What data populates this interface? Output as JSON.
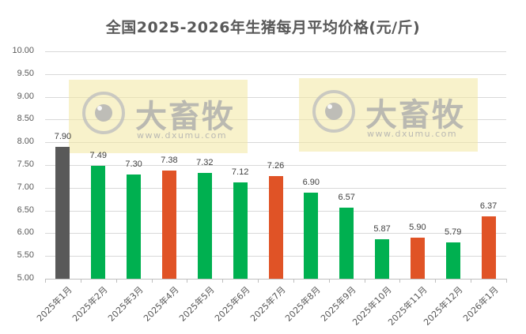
{
  "chart_data": {
    "type": "bar",
    "title": "全国2025-2026年生猪每月平均价格(元/斤)",
    "xlabel": "",
    "ylabel": "",
    "ylim": [
      5.0,
      10.0
    ],
    "yticks": [
      "10.00",
      "9.50",
      "9.00",
      "8.50",
      "8.00",
      "7.50",
      "7.00",
      "6.50",
      "6.00",
      "5.50",
      "5.00"
    ],
    "grid": true,
    "legend": null,
    "categories": [
      "2025年1月",
      "2025年2月",
      "2025年3月",
      "2025年4月",
      "2025年5月",
      "2025年6月",
      "2025年7月",
      "2025年8月",
      "2025年9月",
      "2025年10月",
      "2025年11月",
      "2025年12月",
      "2026年1月"
    ],
    "values": [
      7.9,
      7.49,
      7.3,
      7.38,
      7.32,
      7.12,
      7.26,
      6.9,
      6.57,
      5.87,
      5.9,
      5.79,
      6.37
    ],
    "value_labels": [
      "7.90",
      "7.49",
      "7.30",
      "7.38",
      "7.32",
      "7.12",
      "7.26",
      "6.90",
      "6.57",
      "5.87",
      "5.90",
      "5.79",
      "6.37"
    ],
    "bar_colors": [
      "#595959",
      "#00b050",
      "#00b050",
      "#e05326",
      "#00b050",
      "#00b050",
      "#e05326",
      "#00b050",
      "#00b050",
      "#00b050",
      "#e05326",
      "#00b050",
      "#e05326"
    ]
  },
  "colors": {
    "base": "#595959",
    "down": "#00b050",
    "up": "#e05326",
    "grid": "#d9d9d9",
    "text": "#595959"
  },
  "watermarks": [
    {
      "name": "大畜牧",
      "url": "www.dxumu.com"
    },
    {
      "name": "大畜牧",
      "url": "www.dxumu.com"
    }
  ]
}
